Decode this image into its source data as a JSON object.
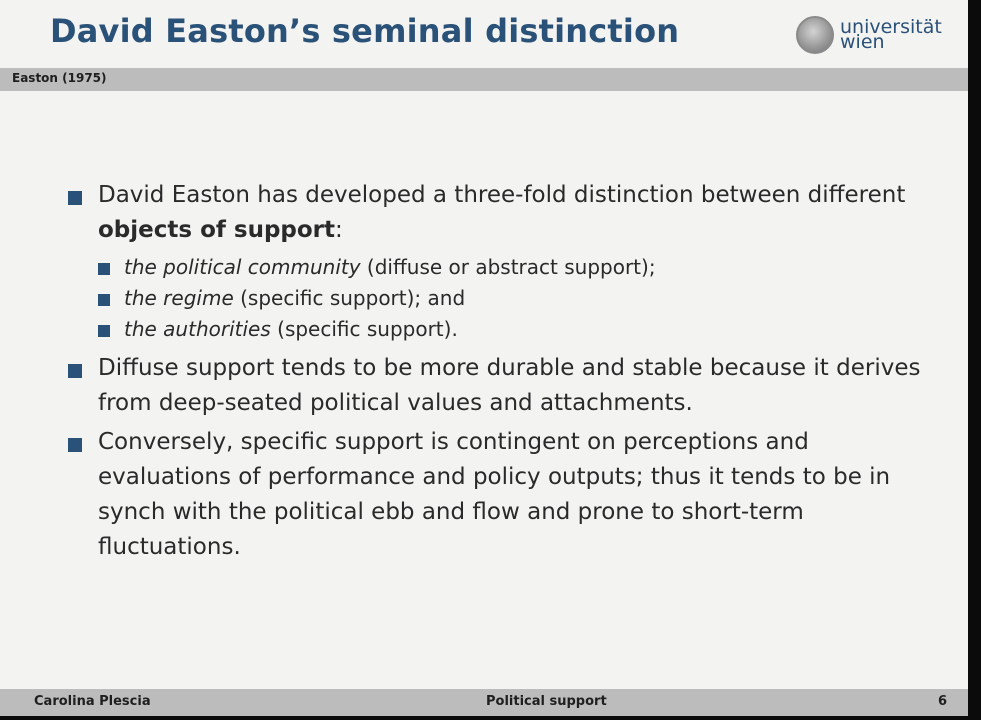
{
  "slide": {
    "title": "David Easton’s seminal distinction",
    "subtitle": "Easton (1975)",
    "logo": {
      "line1": "universität",
      "line2": "wien",
      "icon": "university-seal-icon"
    },
    "bullets": {
      "b1": {
        "text_before": "David Easton has developed a three-fold distinction between different ",
        "bold": "objects of support",
        "text_after": ":",
        "subitems": [
          {
            "italic": "the political community",
            "rest": " (diffuse or abstract support);"
          },
          {
            "italic": "the regime",
            "rest": " (specific support); and"
          },
          {
            "italic": "the authorities",
            "rest": " (specific support)."
          }
        ]
      },
      "b2": "Diffuse support tends to be more durable and stable because it derives from deep-seated political values and attachments.",
      "b3": "Conversely, specific support is contingent on perceptions and evaluations of performance and policy outputs; thus it tends to be in synch with the political ebb and flow and prone to short-term fluctuations."
    },
    "footer": {
      "author": "Carolina Plescia",
      "topic": "Political support",
      "page": "6"
    },
    "colors": {
      "title": "#2a5178",
      "bar": "#bcbcbc",
      "background": "#f3f3f1",
      "bullet": "#2a5178"
    }
  }
}
